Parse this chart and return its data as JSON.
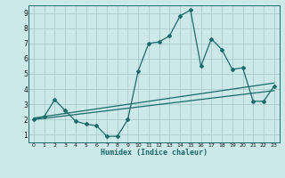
{
  "title": "",
  "xlabel": "Humidex (Indice chaleur)",
  "bg_color": "#cce8e8",
  "grid_color": "#aacccc",
  "line_color": "#1a6b6b",
  "x_data": [
    0,
    1,
    2,
    3,
    4,
    5,
    6,
    7,
    8,
    9,
    10,
    11,
    12,
    13,
    14,
    15,
    16,
    17,
    18,
    19,
    20,
    21,
    22,
    23
  ],
  "y_data": [
    2.0,
    2.2,
    3.3,
    2.6,
    1.9,
    1.7,
    1.6,
    0.9,
    0.9,
    2.0,
    5.2,
    7.0,
    7.1,
    7.5,
    8.8,
    9.2,
    5.5,
    7.3,
    6.6,
    5.3,
    5.4,
    3.2,
    3.2,
    4.2
  ],
  "trend_y_start": 2.1,
  "trend_y_end": 4.4,
  "trend2_y_start": 2.0,
  "trend2_y_end": 3.9,
  "xlim": [
    -0.5,
    23.5
  ],
  "ylim": [
    0.5,
    9.5
  ],
  "xticks": [
    0,
    1,
    2,
    3,
    4,
    5,
    6,
    7,
    8,
    9,
    10,
    11,
    12,
    13,
    14,
    15,
    16,
    17,
    18,
    19,
    20,
    21,
    22,
    23
  ],
  "yticks": [
    1,
    2,
    3,
    4,
    5,
    6,
    7,
    8,
    9
  ]
}
